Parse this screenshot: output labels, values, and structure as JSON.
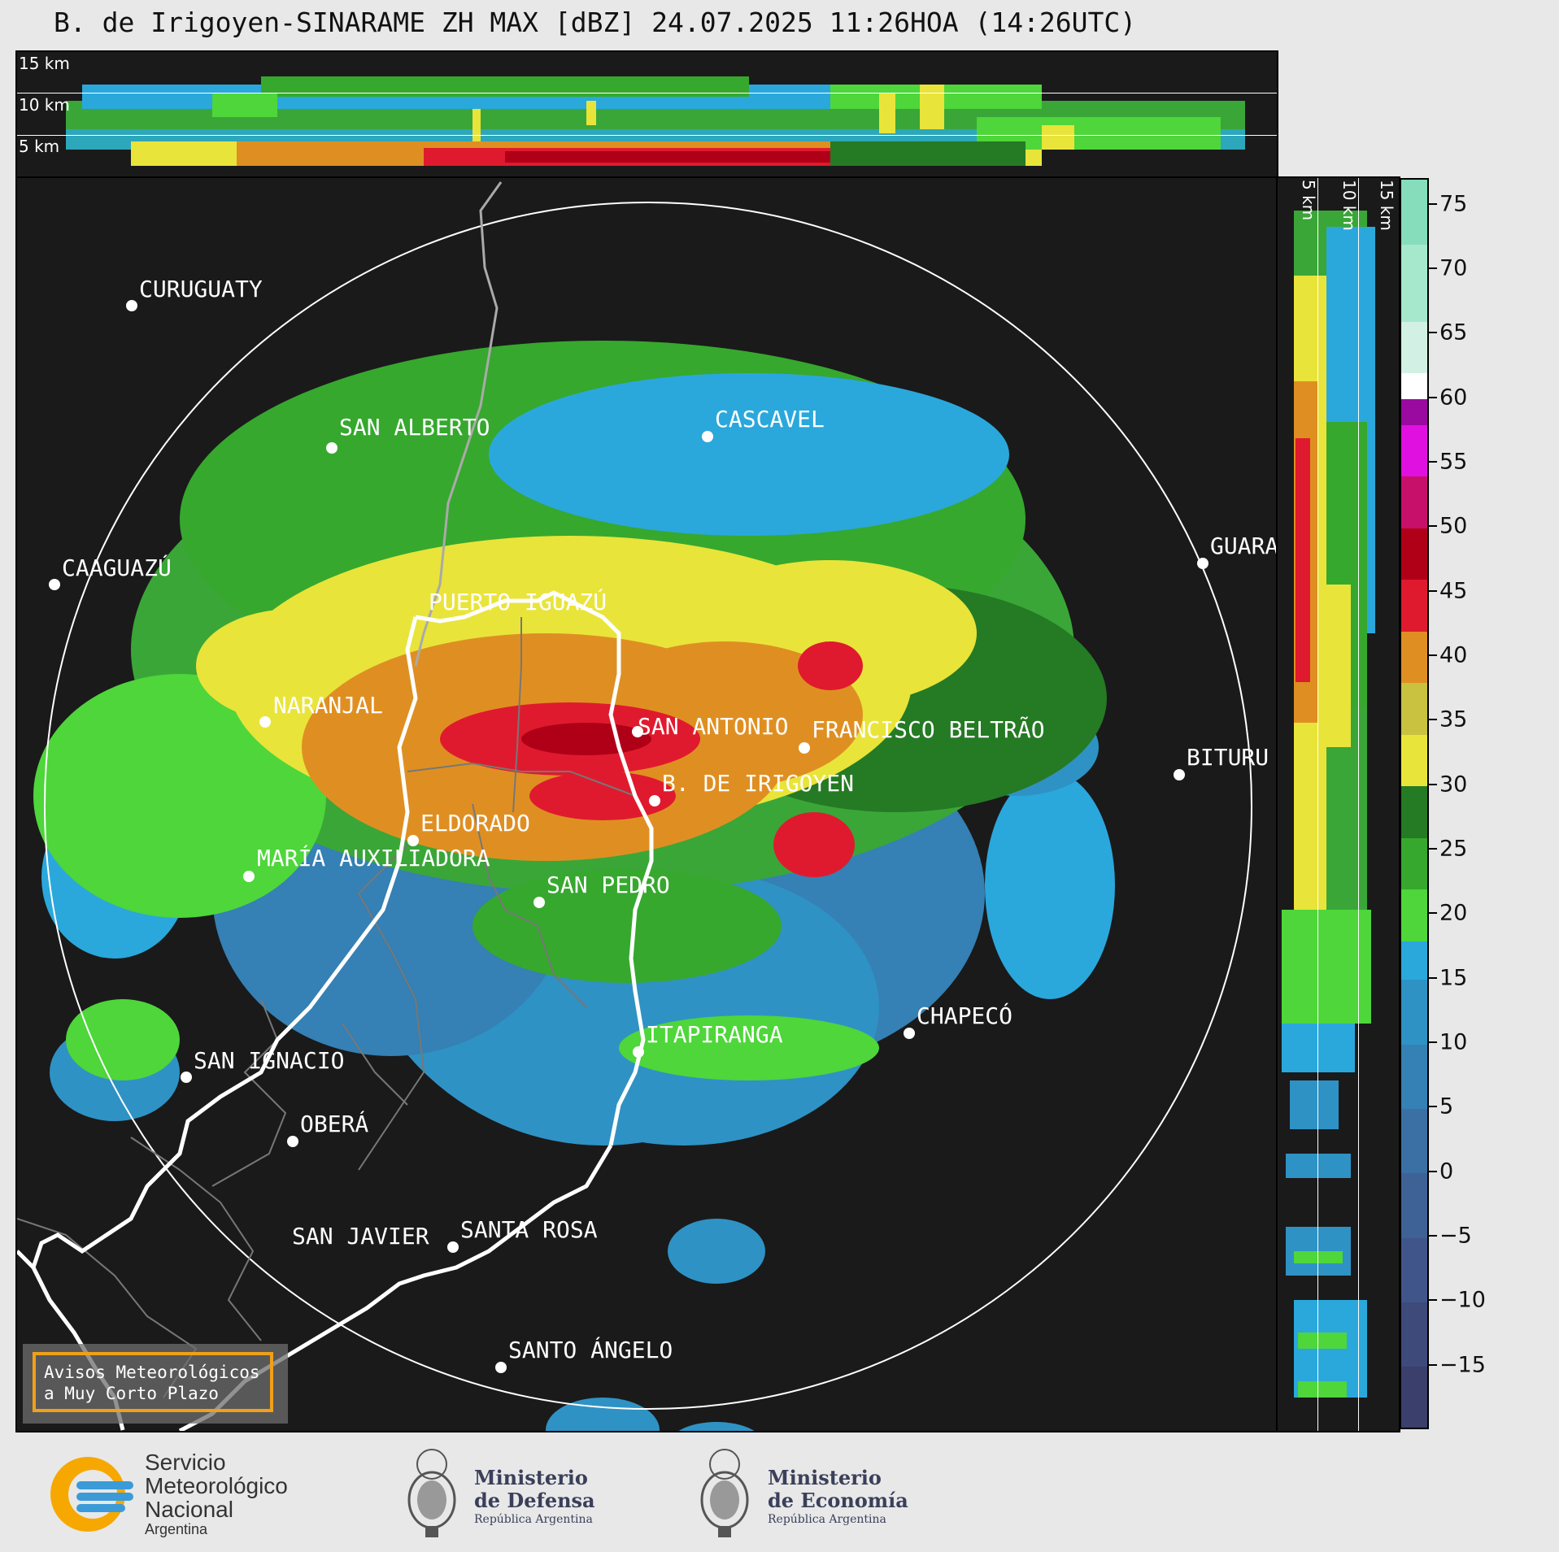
{
  "title": "B. de Irigoyen-SINARAME ZH MAX [dBZ] 24.07.2025 11:26HOA (14:26UTC)",
  "top_panel": {
    "heights": [
      "15 km",
      "10 km",
      "5 km"
    ]
  },
  "side_panel": {
    "heights": [
      "5 km",
      "10 km",
      "15 km"
    ]
  },
  "colorbar": {
    "ticks": [
      "75",
      "70",
      "65",
      "60",
      "55",
      "50",
      "45",
      "40",
      "35",
      "30",
      "25",
      "20",
      "15",
      "10",
      "5",
      "0",
      "−5",
      "−10",
      "−15"
    ],
    "range_dbz": [
      -20,
      77
    ],
    "bands": [
      {
        "from": -20,
        "to": -15,
        "color": "#3a3f6b"
      },
      {
        "from": -15,
        "to": -10,
        "color": "#3e4a7a"
      },
      {
        "from": -10,
        "to": -5,
        "color": "#40558a"
      },
      {
        "from": -5,
        "to": 0,
        "color": "#3e6296"
      },
      {
        "from": 0,
        "to": 5,
        "color": "#3a70a4"
      },
      {
        "from": 5,
        "to": 10,
        "color": "#3580b4"
      },
      {
        "from": 10,
        "to": 15,
        "color": "#2f92c4"
      },
      {
        "from": 15,
        "to": 18,
        "color": "#2aa8dc"
      },
      {
        "from": 18,
        "to": 22,
        "color": "#4ed63a"
      },
      {
        "from": 22,
        "to": 26,
        "color": "#36a82e"
      },
      {
        "from": 26,
        "to": 30,
        "color": "#257a24"
      },
      {
        "from": 30,
        "to": 34,
        "color": "#e9e43a"
      },
      {
        "from": 34,
        "to": 38,
        "color": "#c8c240"
      },
      {
        "from": 38,
        "to": 42,
        "color": "#df8f22"
      },
      {
        "from": 42,
        "to": 46,
        "color": "#e01a2e"
      },
      {
        "from": 46,
        "to": 50,
        "color": "#b00018"
      },
      {
        "from": 50,
        "to": 54,
        "color": "#c6106a"
      },
      {
        "from": 54,
        "to": 58,
        "color": "#e010e0"
      },
      {
        "from": 58,
        "to": 60,
        "color": "#9a0aa0"
      },
      {
        "from": 60,
        "to": 62,
        "color": "#ffffff"
      },
      {
        "from": 62,
        "to": 66,
        "color": "#d2f1e4"
      },
      {
        "from": 66,
        "to": 72,
        "color": "#a6e8cc"
      },
      {
        "from": 72,
        "to": 77,
        "color": "#86ddbc"
      }
    ]
  },
  "cities": [
    {
      "name": "CURUGUATY"
    },
    {
      "name": "SAN ALBERTO"
    },
    {
      "name": "CASCAVEL"
    },
    {
      "name": "CAAGUAZÚ"
    },
    {
      "name": "GUARA"
    },
    {
      "name": "PUERTO IGUAZÚ"
    },
    {
      "name": "NARANJAL"
    },
    {
      "name": "SAN ANTONIO"
    },
    {
      "name": "FRANCISCO BELTRÃO"
    },
    {
      "name": "BITURU"
    },
    {
      "name": "B. DE IRIGOYEN"
    },
    {
      "name": "ELDORADO"
    },
    {
      "name": "MARÍA AUXILIADORA"
    },
    {
      "name": "SAN PEDRO"
    },
    {
      "name": "CHAPECÓ"
    },
    {
      "name": "ITAPIRANGA"
    },
    {
      "name": "SAN IGNACIO"
    },
    {
      "name": "OBERÁ"
    },
    {
      "name": "SAN JAVIER"
    },
    {
      "name": "SANTA ROSA"
    },
    {
      "name": "SANTO ÁNGELO"
    }
  ],
  "banner": {
    "line1": "Avisos Meteorológicos",
    "line2": "a Muy Corto Plazo"
  },
  "footer": {
    "smn": {
      "line1": "Servicio",
      "line2": "Meteorológico",
      "line3": "Nacional",
      "line4": "Argentina"
    },
    "defensa": {
      "line1": "Ministerio",
      "line2": "de Defensa",
      "line3": "República Argentina"
    },
    "economia": {
      "line1": "Ministerio",
      "line2": "de Economía",
      "line3": "República Argentina"
    }
  },
  "colors": {
    "background": "#e8e8e8",
    "panel": "#1a1a1a",
    "banner_border": "#f0a019",
    "smn_orange": "#f7a800",
    "smn_blue": "#3a9bd8"
  }
}
